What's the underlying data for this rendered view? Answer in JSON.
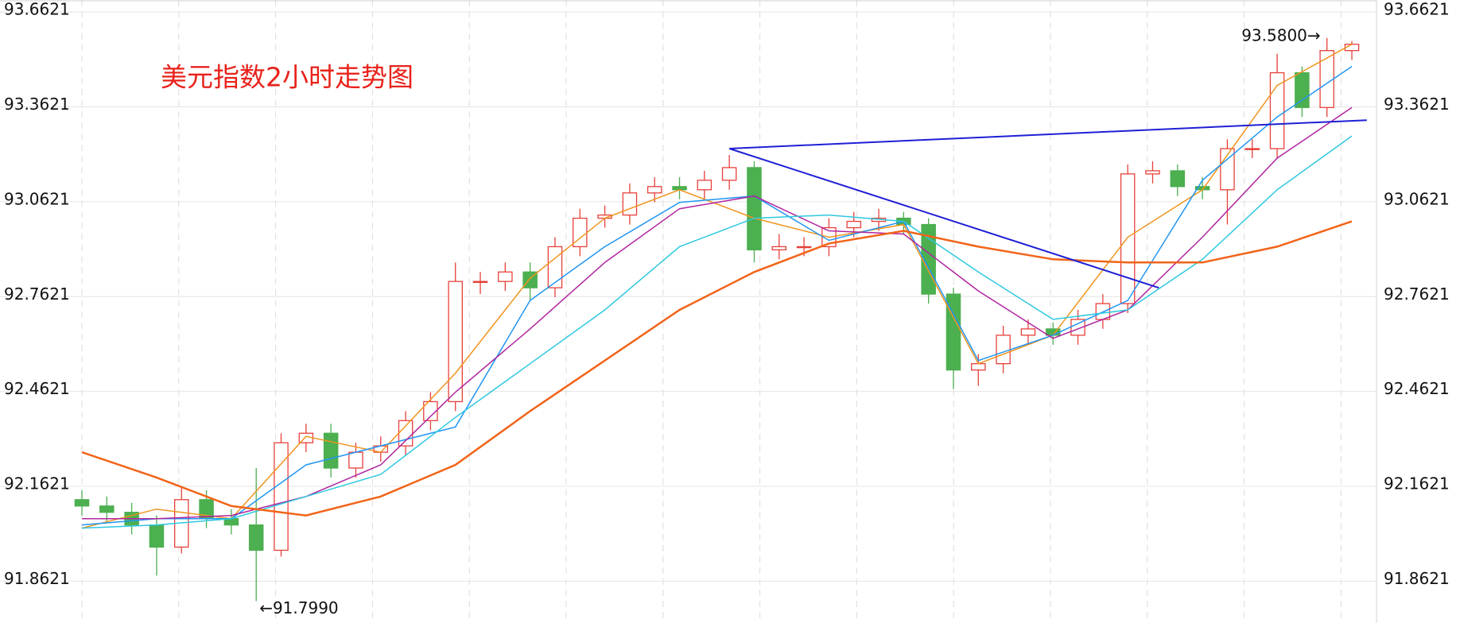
{
  "chart_data": {
    "type": "candlestick",
    "title": "美元指数2小时走势图",
    "ylim": [
      91.73,
      93.7
    ],
    "yticks": [
      91.8621,
      92.1621,
      92.4621,
      92.7621,
      93.0621,
      93.3621,
      93.6621
    ],
    "grid": true,
    "up_color": "#e8403a",
    "down_color": "#4caf50",
    "open": [
      92.12,
      92.1,
      92.08,
      92.04,
      91.97,
      92.12,
      92.06,
      92.04,
      91.96,
      92.3,
      92.33,
      92.22,
      92.27,
      92.29,
      92.37,
      92.43,
      92.81,
      92.81,
      92.84,
      92.79,
      92.92,
      93.01,
      93.02,
      93.09,
      93.11,
      93.1,
      93.13,
      93.17,
      92.91,
      92.92,
      92.92,
      92.98,
      93.0,
      93.01,
      92.99,
      92.77,
      92.53,
      92.55,
      92.64,
      92.66,
      92.64,
      92.69,
      92.74,
      93.15,
      93.16,
      93.11,
      93.1,
      93.23,
      93.23,
      93.47,
      93.36,
      93.54
    ],
    "high": [
      92.15,
      92.13,
      92.11,
      92.07,
      92.16,
      92.15,
      92.09,
      92.22,
      92.33,
      92.36,
      92.36,
      92.3,
      92.32,
      92.4,
      92.46,
      92.87,
      92.84,
      92.87,
      92.87,
      92.95,
      93.04,
      93.05,
      93.12,
      93.14,
      93.14,
      93.16,
      93.21,
      93.19,
      92.96,
      92.95,
      93.01,
      93.03,
      93.04,
      93.03,
      93.01,
      92.79,
      92.58,
      92.67,
      92.69,
      92.68,
      92.72,
      92.77,
      93.18,
      93.19,
      93.18,
      93.14,
      93.26,
      93.26,
      93.53,
      93.49,
      93.58,
      93.57
    ],
    "low": [
      92.07,
      92.05,
      92.01,
      91.88,
      91.95,
      92.03,
      92.01,
      91.799,
      91.94,
      92.27,
      92.19,
      92.19,
      92.24,
      92.26,
      92.34,
      92.4,
      92.77,
      92.78,
      92.75,
      92.76,
      92.89,
      92.98,
      92.99,
      93.06,
      93.07,
      93.07,
      93.1,
      92.87,
      92.88,
      92.89,
      92.89,
      92.95,
      92.97,
      92.96,
      92.74,
      92.47,
      92.48,
      92.52,
      92.61,
      92.61,
      92.61,
      92.66,
      92.71,
      93.12,
      93.08,
      93.07,
      92.99,
      93.2,
      93.2,
      93.33,
      93.33,
      93.51
    ],
    "close": [
      92.1,
      92.08,
      92.04,
      91.97,
      92.12,
      92.06,
      92.04,
      91.96,
      92.3,
      92.33,
      92.22,
      92.27,
      92.29,
      92.37,
      92.43,
      92.81,
      92.81,
      92.84,
      92.79,
      92.92,
      93.01,
      93.02,
      93.09,
      93.11,
      93.1,
      93.13,
      93.17,
      92.91,
      92.92,
      92.92,
      92.98,
      93.0,
      93.01,
      92.99,
      92.77,
      92.53,
      92.55,
      92.64,
      92.66,
      92.64,
      92.69,
      92.74,
      93.15,
      93.16,
      93.11,
      93.1,
      93.23,
      93.23,
      93.47,
      93.36,
      93.54,
      93.56
    ],
    "annotations": [
      "93.5800→",
      "←91.7990"
    ],
    "series": [
      {
        "color": "#f0941f",
        "width": 1.5,
        "x": [
          0,
          3,
          6,
          9,
          12,
          15,
          18,
          21,
          24,
          27,
          30,
          33,
          36,
          39,
          42,
          45,
          48,
          51
        ],
        "values": [
          92.03,
          92.09,
          92.06,
          92.32,
          92.27,
          92.52,
          92.82,
          93.01,
          93.1,
          93.01,
          92.95,
          92.99,
          92.55,
          92.64,
          92.95,
          93.1,
          93.43,
          93.56
        ]
      },
      {
        "color": "#2196f3",
        "width": 1.5,
        "x": [
          0,
          3,
          6,
          9,
          12,
          15,
          18,
          21,
          24,
          27,
          30,
          33,
          36,
          39,
          42,
          45,
          48,
          51
        ],
        "values": [
          92.04,
          92.06,
          92.06,
          92.23,
          92.29,
          92.35,
          92.75,
          92.92,
          93.06,
          93.08,
          92.94,
          93.0,
          92.56,
          92.64,
          92.75,
          93.13,
          93.33,
          93.49
        ]
      },
      {
        "color": "#b0259f",
        "width": 1.5,
        "x": [
          0,
          3,
          6,
          9,
          12,
          15,
          18,
          21,
          24,
          27,
          30,
          33,
          36,
          39,
          42,
          45,
          48,
          51
        ],
        "values": [
          92.06,
          92.06,
          92.07,
          92.13,
          92.23,
          92.46,
          92.66,
          92.87,
          93.04,
          93.08,
          92.97,
          92.96,
          92.78,
          92.63,
          92.72,
          92.95,
          93.2,
          93.36
        ]
      },
      {
        "color": "#2ec8e0",
        "width": 1.5,
        "x": [
          0,
          3,
          6,
          9,
          12,
          15,
          18,
          21,
          24,
          27,
          30,
          33,
          36,
          39,
          42,
          45,
          48,
          51
        ],
        "values": [
          92.03,
          92.04,
          92.06,
          92.13,
          92.2,
          92.38,
          92.55,
          92.72,
          92.92,
          93.01,
          93.02,
          93.0,
          92.84,
          92.69,
          92.72,
          92.88,
          93.1,
          93.27
        ]
      },
      {
        "color": "#f26419",
        "width": 2.5,
        "x": [
          0,
          3,
          6,
          9,
          12,
          15,
          18,
          21,
          24,
          27,
          30,
          33,
          36,
          39,
          42,
          45,
          48,
          51
        ],
        "values": [
          92.27,
          92.19,
          92.1,
          92.07,
          92.13,
          92.23,
          92.4,
          92.56,
          92.72,
          92.84,
          92.93,
          92.97,
          92.92,
          92.88,
          92.87,
          92.87,
          92.92,
          93.0
        ]
      }
    ],
    "trendlines": [
      {
        "color": "#1f1fd6",
        "x": [
          26,
          43.25
        ],
        "values": [
          93.23,
          92.79
        ]
      },
      {
        "color": "#1f1fd6",
        "x": [
          26,
          51.6
        ],
        "values": [
          93.23,
          93.32
        ]
      }
    ]
  }
}
